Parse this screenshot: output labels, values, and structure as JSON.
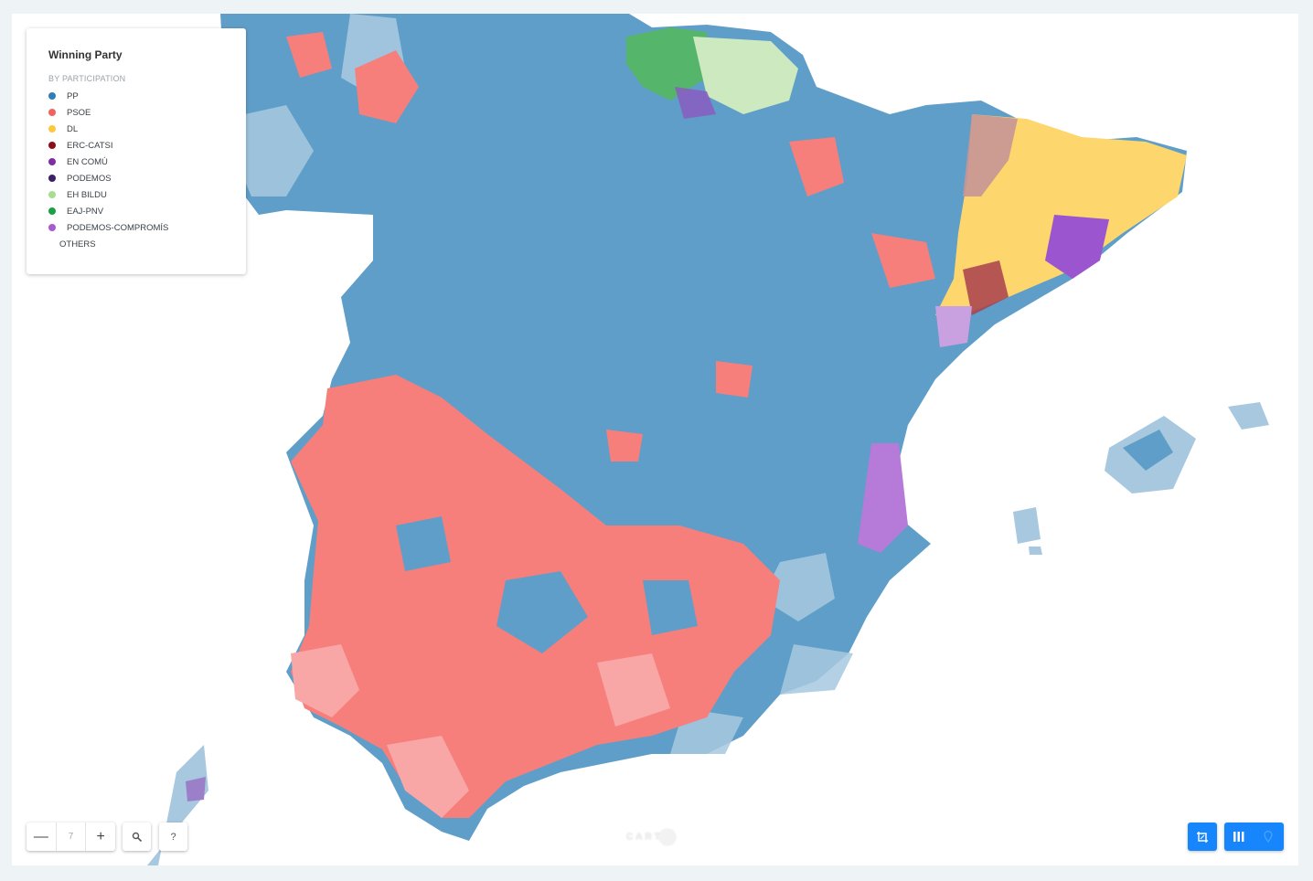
{
  "legend": {
    "title": "Winning Party",
    "subtitle": "BY PARTICIPATION",
    "items": [
      {
        "label": "PP",
        "color": "#2c7fb8"
      },
      {
        "label": "PSOE",
        "color": "#f16260"
      },
      {
        "label": "DL",
        "color": "#fdc93a"
      },
      {
        "label": "ERC-CATSI",
        "color": "#8b0f1a"
      },
      {
        "label": "EN COMÚ",
        "color": "#7b2ea6"
      },
      {
        "label": "PODEMOS",
        "color": "#3d2166"
      },
      {
        "label": "EH BILDU",
        "color": "#a8dc8e"
      },
      {
        "label": "EAJ-PNV",
        "color": "#1aa046"
      },
      {
        "label": "PODEMOS-COMPROMÍS",
        "color": "#a85bd1"
      },
      {
        "label": "OTHERS",
        "color": ""
      }
    ]
  },
  "map": {
    "land_pp": "#5f9ec8",
    "land_pp_light": "#a7c8df",
    "psoe": "#f67f7c",
    "psoe_light": "#f8a6a6",
    "catalonia_dl": "#fdd66d",
    "catalonia_mauve": "#c79595",
    "en_comu": "#9b56cf",
    "basque_green": "#55b56b",
    "basque_light": "#cde9bf"
  },
  "controls": {
    "zoom_out": "—",
    "zoom_level": "7",
    "zoom_in": "+",
    "search_icon": "search-icon",
    "help": "?"
  },
  "attribution": {
    "logo_text": "CART"
  },
  "buttons": {
    "widgets_icon": "add-layer-icon",
    "widgets_view_icon": "columns-icon",
    "map_view_icon": "map-pin-icon"
  }
}
